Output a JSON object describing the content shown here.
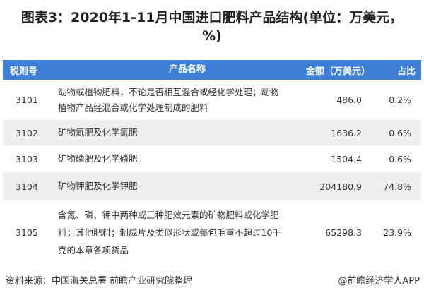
{
  "title": "图表3：2020年1-11月中国进口肥料产品结构(单位：万美元，%)",
  "table": {
    "headers": [
      "税则号",
      "产品名称",
      "金额（万美元）",
      "占比"
    ],
    "rows": [
      {
        "code": "3101",
        "name": "动物或植物肥料，不论是否相互混合或经化学处理；动物植物产品经混合或化学处理制成的肥料",
        "amount": "486.0",
        "share": "0.2%"
      },
      {
        "code": "3102",
        "name": "矿物氮肥及化学氮肥",
        "amount": "1636.2",
        "share": "0.6%"
      },
      {
        "code": "3103",
        "name": "矿物磷肥及化学磷肥",
        "amount": "1504.4",
        "share": "0.6%"
      },
      {
        "code": "3104",
        "name": "矿物钾肥及化学钾肥",
        "amount": "204180.9",
        "share": "74.8%"
      },
      {
        "code": "3105",
        "name": "含氮、磷、钾中两种或三种肥效元素的矿物肥料或化学肥料；其他肥料；制成片及类似形状或每包毛重不超过10千克的本章各项货品",
        "amount": "65298.3",
        "share": "23.9%"
      }
    ]
  },
  "footer": {
    "source": "资料来源：中国海关总署 前瞻产业研究院整理",
    "credit": "@前瞻经济学人APP"
  },
  "colors": {
    "header": "#3d7fd6",
    "alt_row": "#efefef"
  }
}
